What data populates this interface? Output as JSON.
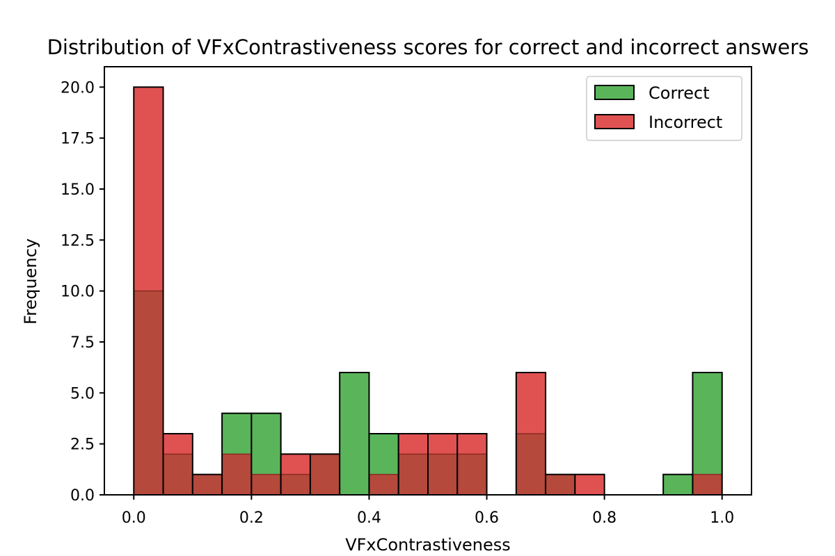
{
  "chart_data": {
    "type": "bar",
    "title": "Distribution of VFxContrastiveness scores for correct and incorrect answers",
    "xlabel": "VFxContrastiveness",
    "ylabel": "Frequency",
    "bin_edges": [
      0.0,
      0.05,
      0.1,
      0.15,
      0.2,
      0.25,
      0.3,
      0.35,
      0.4,
      0.45,
      0.5,
      0.55,
      0.6,
      0.65,
      0.7,
      0.75,
      0.8,
      0.85,
      0.9,
      0.95,
      1.0
    ],
    "series": [
      {
        "name": "Correct",
        "color": "#5ab55a",
        "values": [
          10,
          2,
          1,
          4,
          4,
          1,
          2,
          6,
          3,
          2,
          2,
          2,
          0,
          3,
          1,
          0,
          0,
          0,
          1,
          6
        ]
      },
      {
        "name": "Incorrect",
        "color": "#e05252",
        "values": [
          20,
          3,
          1,
          2,
          1,
          2,
          2,
          0,
          1,
          3,
          3,
          3,
          0,
          6,
          1,
          1,
          0,
          0,
          0,
          1
        ]
      }
    ],
    "overlap_color": "#b5493b",
    "xlim": [
      -0.05,
      1.05
    ],
    "ylim": [
      0,
      21
    ],
    "xticks": [
      0.0,
      0.2,
      0.4,
      0.6,
      0.8,
      1.0
    ],
    "xtick_labels": [
      "0.0",
      "0.2",
      "0.4",
      "0.6",
      "0.8",
      "1.0"
    ],
    "yticks": [
      0,
      2.5,
      5,
      7.5,
      10,
      12.5,
      15,
      17.5,
      20
    ],
    "ytick_labels": [
      "0.0",
      "2.5",
      "5.0",
      "7.5",
      "10.0",
      "12.5",
      "15.0",
      "17.5",
      "20.0"
    ],
    "grid": false,
    "legend_position": "top-right"
  }
}
